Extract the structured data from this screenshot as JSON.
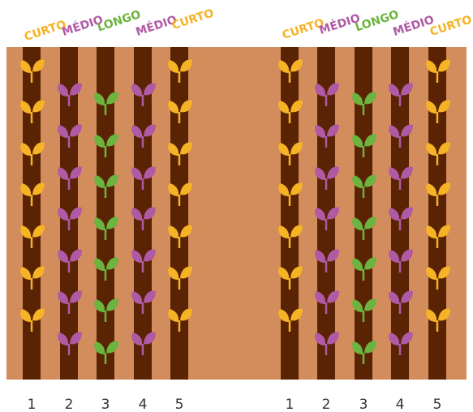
{
  "groups": [
    {
      "rows": [
        {
          "label": "CURTO",
          "number": "1"
        },
        {
          "label": "MÉDIO",
          "number": "2"
        },
        {
          "label": "LONGO",
          "number": "3"
        },
        {
          "label": "MÉDIO",
          "number": "4"
        },
        {
          "label": "CURTO",
          "number": "5"
        }
      ]
    },
    {
      "rows": [
        {
          "label": "CURTO",
          "number": "1"
        },
        {
          "label": "MÉDIO",
          "number": "2"
        },
        {
          "label": "LONGO",
          "number": "3"
        },
        {
          "label": "MÉDIO",
          "number": "4"
        },
        {
          "label": "CURTO",
          "number": "5"
        }
      ]
    }
  ]
}
